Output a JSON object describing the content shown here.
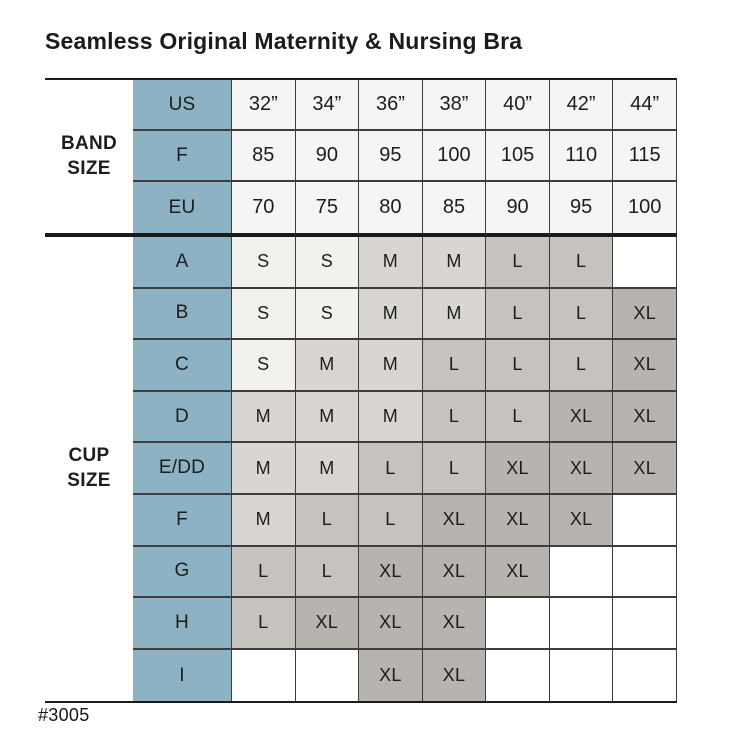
{
  "product_code": "#3005",
  "colors": {
    "header_blue": "#8cb2c3",
    "band_cell": "#f6f5f3",
    "size_s": "#f3f1ee",
    "size_m": "#d9d6d1",
    "size_l": "#c6c3be",
    "size_xl": "#b7b4af",
    "empty_cell": "#ffffff",
    "grid_line": "#3d3d3d",
    "heavy_line": "#1a1a1a",
    "text": "#1d1d1d"
  },
  "chart_data": {
    "type": "table",
    "title": "Seamless Original Maternity & Nursing Bra",
    "column_count": 7,
    "sections": [
      {
        "id": "band",
        "label": "BAND\nSIZE",
        "rows": [
          {
            "header": "US",
            "cells": [
              "32”",
              "34”",
              "36”",
              "38”",
              "40”",
              "42”",
              "44”"
            ]
          },
          {
            "header": "F",
            "cells": [
              "85",
              "90",
              "95",
              "100",
              "105",
              "110",
              "115"
            ]
          },
          {
            "header": "EU",
            "cells": [
              "70",
              "75",
              "80",
              "85",
              "90",
              "95",
              "100"
            ]
          }
        ]
      },
      {
        "id": "cup",
        "label": "CUP\nSIZE",
        "rows": [
          {
            "header": "A",
            "cells": [
              "S",
              "S",
              "M",
              "M",
              "L",
              "L",
              ""
            ]
          },
          {
            "header": "B",
            "cells": [
              "S",
              "S",
              "M",
              "M",
              "L",
              "L",
              "XL"
            ]
          },
          {
            "header": "C",
            "cells": [
              "S",
              "M",
              "M",
              "L",
              "L",
              "L",
              "XL"
            ]
          },
          {
            "header": "D",
            "cells": [
              "M",
              "M",
              "M",
              "L",
              "L",
              "XL",
              "XL"
            ]
          },
          {
            "header": "E/DD",
            "cells": [
              "M",
              "M",
              "L",
              "L",
              "XL",
              "XL",
              "XL"
            ]
          },
          {
            "header": "F",
            "cells": [
              "M",
              "L",
              "L",
              "XL",
              "XL",
              "XL",
              ""
            ]
          },
          {
            "header": "G",
            "cells": [
              "L",
              "L",
              "XL",
              "XL",
              "XL",
              "",
              ""
            ]
          },
          {
            "header": "H",
            "cells": [
              "L",
              "XL",
              "XL",
              "XL",
              "",
              "",
              ""
            ]
          },
          {
            "header": "I",
            "cells": [
              "",
              "",
              "XL",
              "XL",
              "",
              "",
              ""
            ]
          }
        ]
      }
    ]
  }
}
